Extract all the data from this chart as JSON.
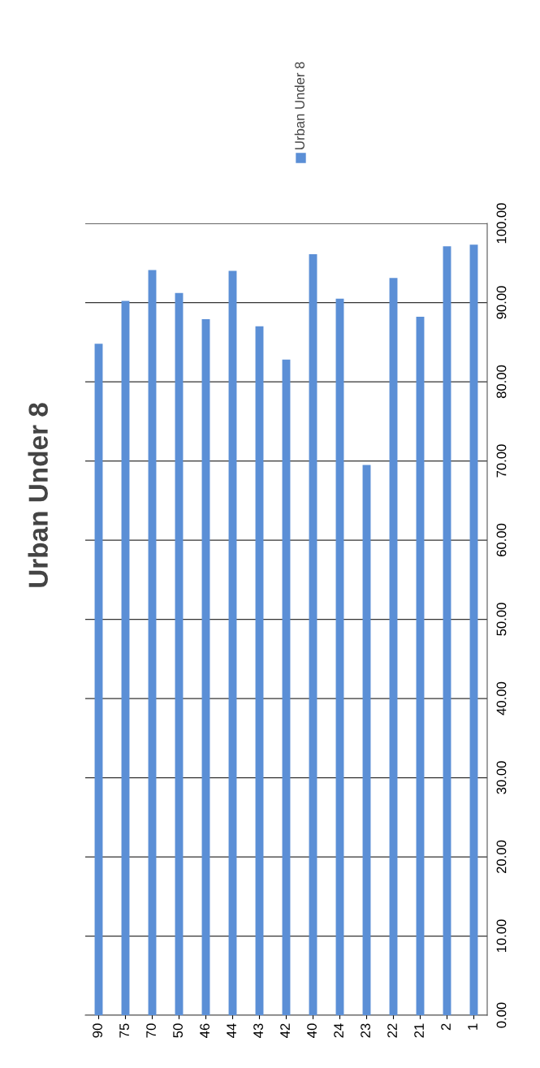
{
  "chart_data": {
    "type": "bar",
    "title": "Urban Under 8",
    "categories": [
      "90",
      "75",
      "70",
      "50",
      "46",
      "44",
      "43",
      "42",
      "40",
      "24",
      "23",
      "22",
      "21",
      "2",
      "1"
    ],
    "series": [
      {
        "name": "Urban Under 8",
        "color": "#5b8fd6",
        "values": [
          84.8,
          90.2,
          94.1,
          91.2,
          87.9,
          94.0,
          87.0,
          82.8,
          96.1,
          90.5,
          69.5,
          93.1,
          88.2,
          97.1,
          97.3
        ]
      }
    ],
    "ylim": [
      0,
      100
    ],
    "yticks": [
      {
        "value": 0,
        "label": "0.00"
      },
      {
        "value": 10,
        "label": "10.00"
      },
      {
        "value": 20,
        "label": "20.00"
      },
      {
        "value": 30,
        "label": "30.00"
      },
      {
        "value": 40,
        "label": "40.00"
      },
      {
        "value": 50,
        "label": "50.00"
      },
      {
        "value": 60,
        "label": "60.00"
      },
      {
        "value": 70,
        "label": "70.00"
      },
      {
        "value": 80,
        "label": "80.00"
      },
      {
        "value": 90,
        "label": "90.00"
      },
      {
        "value": 100,
        "label": "100.00"
      }
    ],
    "grid": "y",
    "legend": "top right"
  }
}
